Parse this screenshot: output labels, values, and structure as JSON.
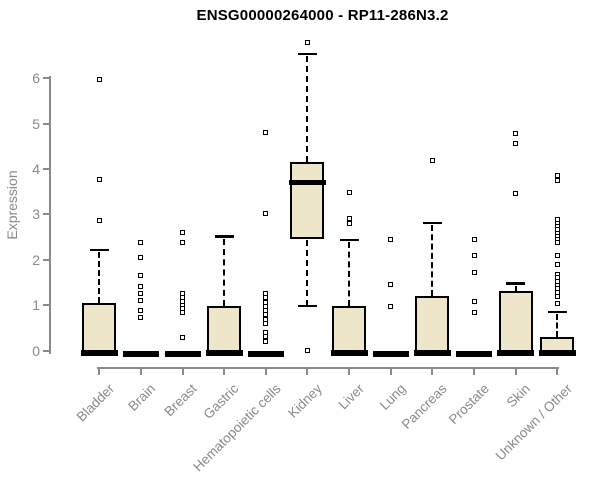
{
  "title": "ENSG00000264000 - RP11-286N3.2",
  "chart_data": {
    "type": "boxplot",
    "title": "ENSG00000264000 - RP11-286N3.2",
    "xlabel": "",
    "ylabel": "Expression",
    "ylim": [
      0,
      6.9
    ],
    "yticks": [
      "0",
      "1",
      "2",
      "3",
      "4",
      "5",
      "6"
    ],
    "grid": false,
    "legend": "none",
    "categories": [
      "Bladder",
      "Brain",
      "Breast",
      "Gastric",
      "Hematopoietic cells",
      "Kidney",
      "Liver",
      "Lung",
      "Pancreas",
      "Prostate",
      "Skin",
      "Unknown / Other"
    ],
    "boxes": [
      {
        "category": "Bladder",
        "q1": 0,
        "median": 0.02,
        "q3": 1.05,
        "whisker_low": 0,
        "whisker_high": 2.22,
        "outliers": [
          5.97,
          3.77,
          2.87
        ]
      },
      {
        "category": "Brain",
        "q1": 0,
        "median": 0,
        "q3": 0,
        "whisker_low": 0,
        "whisker_high": 0,
        "outliers": [
          2.37,
          2.06,
          1.65,
          1.41,
          1.26,
          1.1,
          0.88,
          0.72
        ]
      },
      {
        "category": "Breast",
        "q1": 0,
        "median": 0,
        "q3": 0,
        "whisker_low": 0,
        "whisker_high": 0,
        "outliers": [
          2.59,
          2.37,
          1.25,
          1.17,
          1.08,
          1.0,
          0.92,
          0.84,
          0.29
        ]
      },
      {
        "category": "Gastric",
        "q1": 0,
        "median": 0.02,
        "q3": 0.99,
        "whisker_low": 0,
        "whisker_high": 2.52,
        "outliers": []
      },
      {
        "category": "Hematopoietic cells",
        "q1": 0,
        "median": 0,
        "q3": 0,
        "whisker_low": 0,
        "whisker_high": 0,
        "outliers": [
          4.8,
          3.02,
          1.25,
          1.16,
          1.07,
          0.98,
          0.89,
          0.79,
          0.68,
          0.59,
          0.4,
          0.3,
          0.19
        ]
      },
      {
        "category": "Kidney",
        "q1": 2.49,
        "median": 3.7,
        "q3": 4.15,
        "whisker_low": 0.99,
        "whisker_high": 6.54,
        "outliers": [
          6.79,
          0.0
        ]
      },
      {
        "category": "Liver",
        "q1": 0,
        "median": 0.02,
        "q3": 0.99,
        "whisker_low": 0,
        "whisker_high": 2.44,
        "outliers": [
          3.47,
          2.9,
          2.79
        ]
      },
      {
        "category": "Lung",
        "q1": 0,
        "median": 0,
        "q3": 0,
        "whisker_low": 0,
        "whisker_high": 0,
        "outliers": [
          2.44,
          1.45,
          0.98
        ]
      },
      {
        "category": "Pancreas",
        "q1": 0,
        "median": 0.02,
        "q3": 1.2,
        "whisker_low": 0,
        "whisker_high": 2.82,
        "outliers": [
          4.18
        ]
      },
      {
        "category": "Prostate",
        "q1": 0,
        "median": 0,
        "q3": 0,
        "whisker_low": 0,
        "whisker_high": 0,
        "outliers": [
          2.44,
          2.1,
          1.72,
          1.09,
          0.84
        ]
      },
      {
        "category": "Skin",
        "q1": 0,
        "median": 0.02,
        "q3": 1.31,
        "whisker_low": 0,
        "whisker_high": 1.48,
        "outliers": [
          4.78,
          4.57,
          3.46
        ]
      },
      {
        "category": "Unknown / Other",
        "q1": 0,
        "median": 0.02,
        "q3": 0.3,
        "whisker_low": 0,
        "whisker_high": 0.86,
        "outliers": [
          3.85,
          3.74,
          2.88,
          2.8,
          2.73,
          2.66,
          2.58,
          2.51,
          2.44,
          2.37,
          2.1,
          1.89,
          1.68,
          1.6,
          1.52,
          1.44,
          1.36,
          1.28,
          1.2,
          1.04
        ]
      }
    ]
  },
  "colors": {
    "background": "#ffffff",
    "box_fill": "#EDE6CB",
    "box_border": "#000000",
    "median": "#000000",
    "axis": "#8a8a8a",
    "tick_text": "#8a8a8a",
    "title_text": "#000000"
  }
}
